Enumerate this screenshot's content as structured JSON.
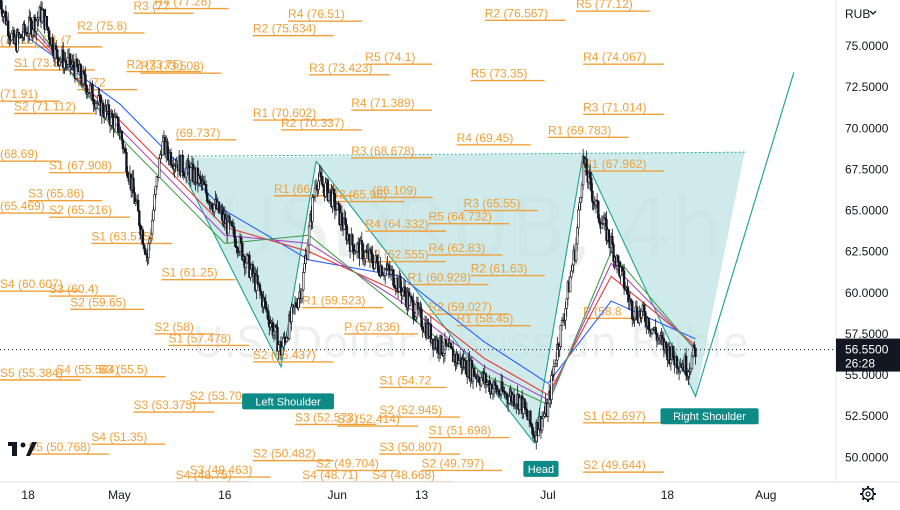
{
  "currency_selector": {
    "label": "RUB",
    "chevron_icon": "chevron-down-icon"
  },
  "settings_icon": "gear-icon",
  "logo": {
    "name": "tradingview-logo-icon",
    "text": "TV"
  },
  "watermark": {
    "symbol": "USDRUB, 4h",
    "description": "U.S. Dollar / Russian Ruble"
  },
  "current_price": {
    "value": "56.5500",
    "countdown": "26:28",
    "color": "#131722"
  },
  "colors": {
    "pivot": "#f0a03a",
    "pattern_fill": "#bfe3e3",
    "pattern_line": "#26a69a",
    "label_bg": "#0f8b87",
    "candles": "#131722",
    "ma_blue": "#2962ff",
    "ma_red": "#e53935",
    "ma_green": "#43a047",
    "ma_pink": "#ab47bc"
  },
  "chart_data": {
    "type": "candlestick",
    "y_axis": {
      "range": [
        48.5,
        77.8
      ],
      "ticks": [
        "75.0000",
        "72.5000",
        "70.0000",
        "67.5000",
        "65.0000",
        "62.5000",
        "60.0000",
        "57.5000",
        "55.0000",
        "52.5000",
        "50.0000"
      ]
    },
    "x_axis": {
      "range": [
        "2022-04-14",
        "2022-08-11"
      ],
      "ticks": [
        {
          "date": "2022-04-18",
          "label": "18"
        },
        {
          "date": "2022-05-01",
          "label": "May"
        },
        {
          "date": "2022-05-16",
          "label": "16"
        },
        {
          "date": "2022-06-01",
          "label": "Jun"
        },
        {
          "date": "2022-06-13",
          "label": "13"
        },
        {
          "date": "2022-07-01",
          "label": "Jul"
        },
        {
          "date": "2022-07-18",
          "label": "18"
        },
        {
          "date": "2022-08-01",
          "label": "Aug"
        }
      ]
    },
    "price_path": [
      [
        "2022-04-14",
        77.8
      ],
      [
        "2022-04-16",
        75.1
      ],
      [
        "2022-04-20",
        77.0
      ],
      [
        "2022-04-22",
        74.5
      ],
      [
        "2022-04-25",
        73.5
      ],
      [
        "2022-04-28",
        71.5
      ],
      [
        "2022-05-01",
        70.0
      ],
      [
        "2022-05-03",
        66.0
      ],
      [
        "2022-05-05",
        62.2
      ],
      [
        "2022-05-07",
        69.0
      ],
      [
        "2022-05-09",
        68.0
      ],
      [
        "2022-05-12",
        67.0
      ],
      [
        "2022-05-15",
        65.0
      ],
      [
        "2022-05-18",
        63.0
      ],
      [
        "2022-05-21",
        60.0
      ],
      [
        "2022-05-24",
        56.5
      ],
      [
        "2022-05-27",
        60.5
      ],
      [
        "2022-05-29",
        67.0
      ],
      [
        "2022-05-31",
        66.0
      ],
      [
        "2022-06-03",
        63.0
      ],
      [
        "2022-06-06",
        62.0
      ],
      [
        "2022-06-09",
        61.0
      ],
      [
        "2022-06-12",
        59.0
      ],
      [
        "2022-06-15",
        57.0
      ],
      [
        "2022-06-18",
        56.0
      ],
      [
        "2022-06-21",
        55.0
      ],
      [
        "2022-06-24",
        54.0
      ],
      [
        "2022-06-27",
        53.5
      ],
      [
        "2022-06-29",
        51.5
      ],
      [
        "2022-07-01",
        53.0
      ],
      [
        "2022-07-02",
        56.0
      ],
      [
        "2022-07-03",
        58.0
      ],
      [
        "2022-07-05",
        63.0
      ],
      [
        "2022-07-06",
        68.0
      ],
      [
        "2022-07-08",
        65.0
      ],
      [
        "2022-07-10",
        63.0
      ],
      [
        "2022-07-13",
        59.0
      ],
      [
        "2022-07-15",
        58.5
      ],
      [
        "2022-07-17",
        57.0
      ],
      [
        "2022-07-19",
        56.0
      ],
      [
        "2022-07-21",
        55.5
      ],
      [
        "2022-07-22",
        56.55
      ]
    ],
    "moving_averages": [
      {
        "color": "#2962ff",
        "points": [
          [
            "2022-04-18",
            75.5
          ],
          [
            "2022-05-01",
            71.5
          ],
          [
            "2022-05-16",
            65.0
          ],
          [
            "2022-05-28",
            62.0
          ],
          [
            "2022-06-10",
            61.0
          ],
          [
            "2022-06-22",
            57.0
          ],
          [
            "2022-07-01",
            54.5
          ],
          [
            "2022-07-10",
            59.5
          ],
          [
            "2022-07-22",
            57.2
          ]
        ]
      },
      {
        "color": "#e53935",
        "points": [
          [
            "2022-04-18",
            76.0
          ],
          [
            "2022-05-01",
            70.5
          ],
          [
            "2022-05-16",
            64.0
          ],
          [
            "2022-05-28",
            62.5
          ],
          [
            "2022-06-10",
            60.0
          ],
          [
            "2022-06-22",
            56.0
          ],
          [
            "2022-07-01",
            53.8
          ],
          [
            "2022-07-10",
            61.0
          ],
          [
            "2022-07-22",
            56.8
          ]
        ]
      },
      {
        "color": "#ab47bc",
        "points": [
          [
            "2022-04-18",
            76.4
          ],
          [
            "2022-05-01",
            70.0
          ],
          [
            "2022-05-16",
            63.5
          ],
          [
            "2022-05-28",
            63.0
          ],
          [
            "2022-06-10",
            59.5
          ],
          [
            "2022-06-22",
            55.5
          ],
          [
            "2022-07-01",
            53.5
          ],
          [
            "2022-07-10",
            61.8
          ],
          [
            "2022-07-22",
            56.6
          ]
        ]
      },
      {
        "color": "#43a047",
        "points": [
          [
            "2022-04-18",
            76.8
          ],
          [
            "2022-05-01",
            69.5
          ],
          [
            "2022-05-16",
            63.0
          ],
          [
            "2022-05-28",
            63.5
          ],
          [
            "2022-06-10",
            59.0
          ],
          [
            "2022-06-22",
            55.0
          ],
          [
            "2022-07-01",
            53.2
          ],
          [
            "2022-07-10",
            62.5
          ],
          [
            "2022-07-22",
            56.5
          ]
        ]
      }
    ],
    "pattern": {
      "name": "inverse head and shoulders",
      "neckline": [
        [
          "2022-05-10",
          68.3
        ],
        [
          "2022-07-29",
          68.55
        ]
      ],
      "left_shoulder": [
        [
          "2022-05-09",
          68.2
        ],
        [
          "2022-05-24",
          55.5
        ],
        [
          "2022-05-29",
          68.0
        ]
      ],
      "head": [
        [
          "2022-05-29",
          68.0
        ],
        [
          "2022-06-29",
          50.9
        ],
        [
          "2022-07-06",
          68.4
        ]
      ],
      "right_shoulder": [
        [
          "2022-07-06",
          68.4
        ],
        [
          "2022-07-22",
          53.7
        ],
        [
          "2022-08-05",
          73.4
        ]
      ],
      "fill_polygon": [
        [
          "2022-05-09",
          68.2
        ],
        [
          "2022-05-24",
          55.5
        ],
        [
          "2022-05-29",
          68.0
        ],
        [
          "2022-06-29",
          50.9
        ],
        [
          "2022-07-06",
          68.4
        ],
        [
          "2022-07-22",
          53.7
        ],
        [
          "2022-07-29",
          68.55
        ]
      ],
      "labels": [
        {
          "text": "Left Shoulder",
          "date": "2022-05-25",
          "price": 53.4
        },
        {
          "text": "Head",
          "date": "2022-06-30",
          "price": 49.3
        },
        {
          "text": "Right Shoulder",
          "date": "2022-07-24",
          "price": 52.5
        }
      ]
    },
    "pivot_levels": [
      {
        "label": "(75.13)",
        "date": "2022-04-14",
        "price": 74.95
      },
      {
        "label": "R1 (7",
        "date": "2022-04-20",
        "price": 74.95
      },
      {
        "label": "R2 (75.8)",
        "date": "2022-04-25",
        "price": 75.8
      },
      {
        "label": "R3 (77",
        "date": "2022-05-03",
        "price": 77.0
      },
      {
        "label": "R4 (77.28)",
        "date": "2022-05-06",
        "price": 77.28
      },
      {
        "label": "R2 (75.634)",
        "date": "2022-05-20",
        "price": 75.634
      },
      {
        "label": "R4 (76.51)",
        "date": "2022-05-25",
        "price": 76.51
      },
      {
        "label": "R2 (76.567)",
        "date": "2022-06-22",
        "price": 76.567
      },
      {
        "label": "R5 (77.12)",
        "date": "2022-07-05",
        "price": 77.12
      },
      {
        "label": "S1 (73.869)",
        "date": "2022-04-16",
        "price": 73.55
      },
      {
        "label": "R2 (73.75)",
        "date": "2022-05-02",
        "price": 73.45
      },
      {
        "label": "R3 (73.508)",
        "date": "2022-05-04",
        "price": 73.35
      },
      {
        "label": "R5 (74.1)",
        "date": "2022-06-05",
        "price": 73.9
      },
      {
        "label": "R3 (73.423)",
        "date": "2022-05-28",
        "price": 73.25
      },
      {
        "label": "R4 (74.067)",
        "date": "2022-07-06",
        "price": 73.9
      },
      {
        "label": "R5 (73.35)",
        "date": "2022-06-20",
        "price": 72.9
      },
      {
        "label": "(71.91)",
        "date": "2022-04-14",
        "price": 71.65
      },
      {
        "label": "S2 (71.112)",
        "date": "2022-04-16",
        "price": 70.9
      },
      {
        "label": "P (72",
        "date": "2022-04-25",
        "price": 72.35
      },
      {
        "label": "R1 (70.602)",
        "date": "2022-05-20",
        "price": 70.5
      },
      {
        "label": "R2 (70.337)",
        "date": "2022-05-24",
        "price": 69.9
      },
      {
        "label": "R4 (71.389)",
        "date": "2022-06-03",
        "price": 71.1
      },
      {
        "label": "R3 (71.014)",
        "date": "2022-07-06",
        "price": 70.85
      },
      {
        "label": "(69.737)",
        "date": "2022-05-09",
        "price": 69.3
      },
      {
        "label": "R4 (69.45)",
        "date": "2022-06-18",
        "price": 69.0
      },
      {
        "label": "R1 (69.783)",
        "date": "2022-07-01",
        "price": 69.45
      },
      {
        "label": "(68.69)",
        "date": "2022-04-14",
        "price": 68.0
      },
      {
        "label": "R3 (68.678)",
        "date": "2022-06-03",
        "price": 68.2
      },
      {
        "label": "S1 (67.908)",
        "date": "2022-04-21",
        "price": 67.3
      },
      {
        "label": "R1 (67.962)",
        "date": "2022-07-06",
        "price": 67.4
      },
      {
        "label": "(65.469)",
        "date": "2022-04-14",
        "price": 64.85
      },
      {
        "label": "S3 (65.86)",
        "date": "2022-04-18",
        "price": 65.6
      },
      {
        "label": "S2 (65.216)",
        "date": "2022-04-21",
        "price": 64.6
      },
      {
        "label": "R1 (66.473)",
        "date": "2022-05-23",
        "price": 65.9
      },
      {
        "label": "R2 (65.96)",
        "date": "2022-05-31",
        "price": 65.55
      },
      {
        "label": "(66.109)",
        "date": "2022-06-06",
        "price": 65.8
      },
      {
        "label": "R3 (65.55)",
        "date": "2022-06-19",
        "price": 65.0
      },
      {
        "label": "R5 (64.732)",
        "date": "2022-06-14",
        "price": 64.2
      },
      {
        "label": "R4 (64.332)",
        "date": "2022-06-05",
        "price": 63.75
      },
      {
        "label": "S1 (63.575)",
        "date": "2022-04-27",
        "price": 63.0
      },
      {
        "label": "R3 (62.555)",
        "date": "2022-06-05",
        "price": 61.9
      },
      {
        "label": "R4 (62.83)",
        "date": "2022-06-14",
        "price": 62.3
      },
      {
        "label": "R2 (61.63)",
        "date": "2022-06-20",
        "price": 61.05
      },
      {
        "label": "R1 (60.928)",
        "date": "2022-06-11",
        "price": 60.5
      },
      {
        "label": "S4 (60.607)",
        "date": "2022-04-14",
        "price": 60.1
      },
      {
        "label": "S3 (60.4)",
        "date": "2022-04-21",
        "price": 59.8
      },
      {
        "label": "S1 (61.25)",
        "date": "2022-05-07",
        "price": 60.8
      },
      {
        "label": "S2 (59.65)",
        "date": "2022-04-24",
        "price": 59.0
      },
      {
        "label": "R1 (59.523)",
        "date": "2022-05-27",
        "price": 59.1
      },
      {
        "label": "R2 (59.027)",
        "date": "2022-06-14",
        "price": 58.7
      },
      {
        "label": "R1 (58.45)",
        "date": "2022-06-18",
        "price": 58.0
      },
      {
        "label": "P (58.8",
        "date": "2022-07-06",
        "price": 58.45
      },
      {
        "label": "S2 (58)",
        "date": "2022-05-06",
        "price": 57.5
      },
      {
        "label": "S1 (57.478)",
        "date": "2022-05-08",
        "price": 56.8
      },
      {
        "label": "P (57.836)",
        "date": "2022-06-02",
        "price": 57.5
      },
      {
        "label": "S2 (56.437)",
        "date": "2022-05-20",
        "price": 55.8
      },
      {
        "label": "S5 (55.384)",
        "date": "2022-04-14",
        "price": 54.7
      },
      {
        "label": "S4 (55.584)",
        "date": "2022-04-22",
        "price": 54.9
      },
      {
        "label": "S3 (55.5)",
        "date": "2022-04-28",
        "price": 54.9
      },
      {
        "label": "S1 (54.72",
        "date": "2022-06-07",
        "price": 54.25
      },
      {
        "label": "S3 (53.375)",
        "date": "2022-05-03",
        "price": 52.75
      },
      {
        "label": "S2 (53.70",
        "date": "2022-05-11",
        "price": 53.3
      },
      {
        "label": "S2 (52.945)",
        "date": "2022-06-07",
        "price": 52.45
      },
      {
        "label": "S3 (52.573)",
        "date": "2022-05-26",
        "price": 52.0
      },
      {
        "label": "S3 (52.414)",
        "date": "2022-06-01",
        "price": 51.9
      },
      {
        "label": "S1 (52.697)",
        "date": "2022-07-06",
        "price": 52.1
      },
      {
        "label": "S4 (51.35)",
        "date": "2022-04-27",
        "price": 50.8
      },
      {
        "label": "S1 (51.698)",
        "date": "2022-06-14",
        "price": 51.2
      },
      {
        "label": "S5 (50.768)",
        "date": "2022-04-18",
        "price": 50.2
      },
      {
        "label": "S2 (50.482)",
        "date": "2022-05-20",
        "price": 49.8
      },
      {
        "label": "S3 (50.807)",
        "date": "2022-06-07",
        "price": 50.2
      },
      {
        "label": "S3 (49.463)",
        "date": "2022-05-11",
        "price": 48.8
      },
      {
        "label": "S2 (49.704)",
        "date": "2022-05-29",
        "price": 49.2
      },
      {
        "label": "S2 (49.797)",
        "date": "2022-06-13",
        "price": 49.2
      },
      {
        "label": "S2 (49.644)",
        "date": "2022-07-06",
        "price": 49.1
      },
      {
        "label": "S4 (48.75)",
        "date": "2022-05-09",
        "price": 48.5
      },
      {
        "label": "S4 (48.71)",
        "date": "2022-05-27",
        "price": 48.5
      },
      {
        "label": "S4 (48.668)",
        "date": "2022-06-06",
        "price": 48.5
      }
    ],
    "current_price_value": 56.55
  }
}
